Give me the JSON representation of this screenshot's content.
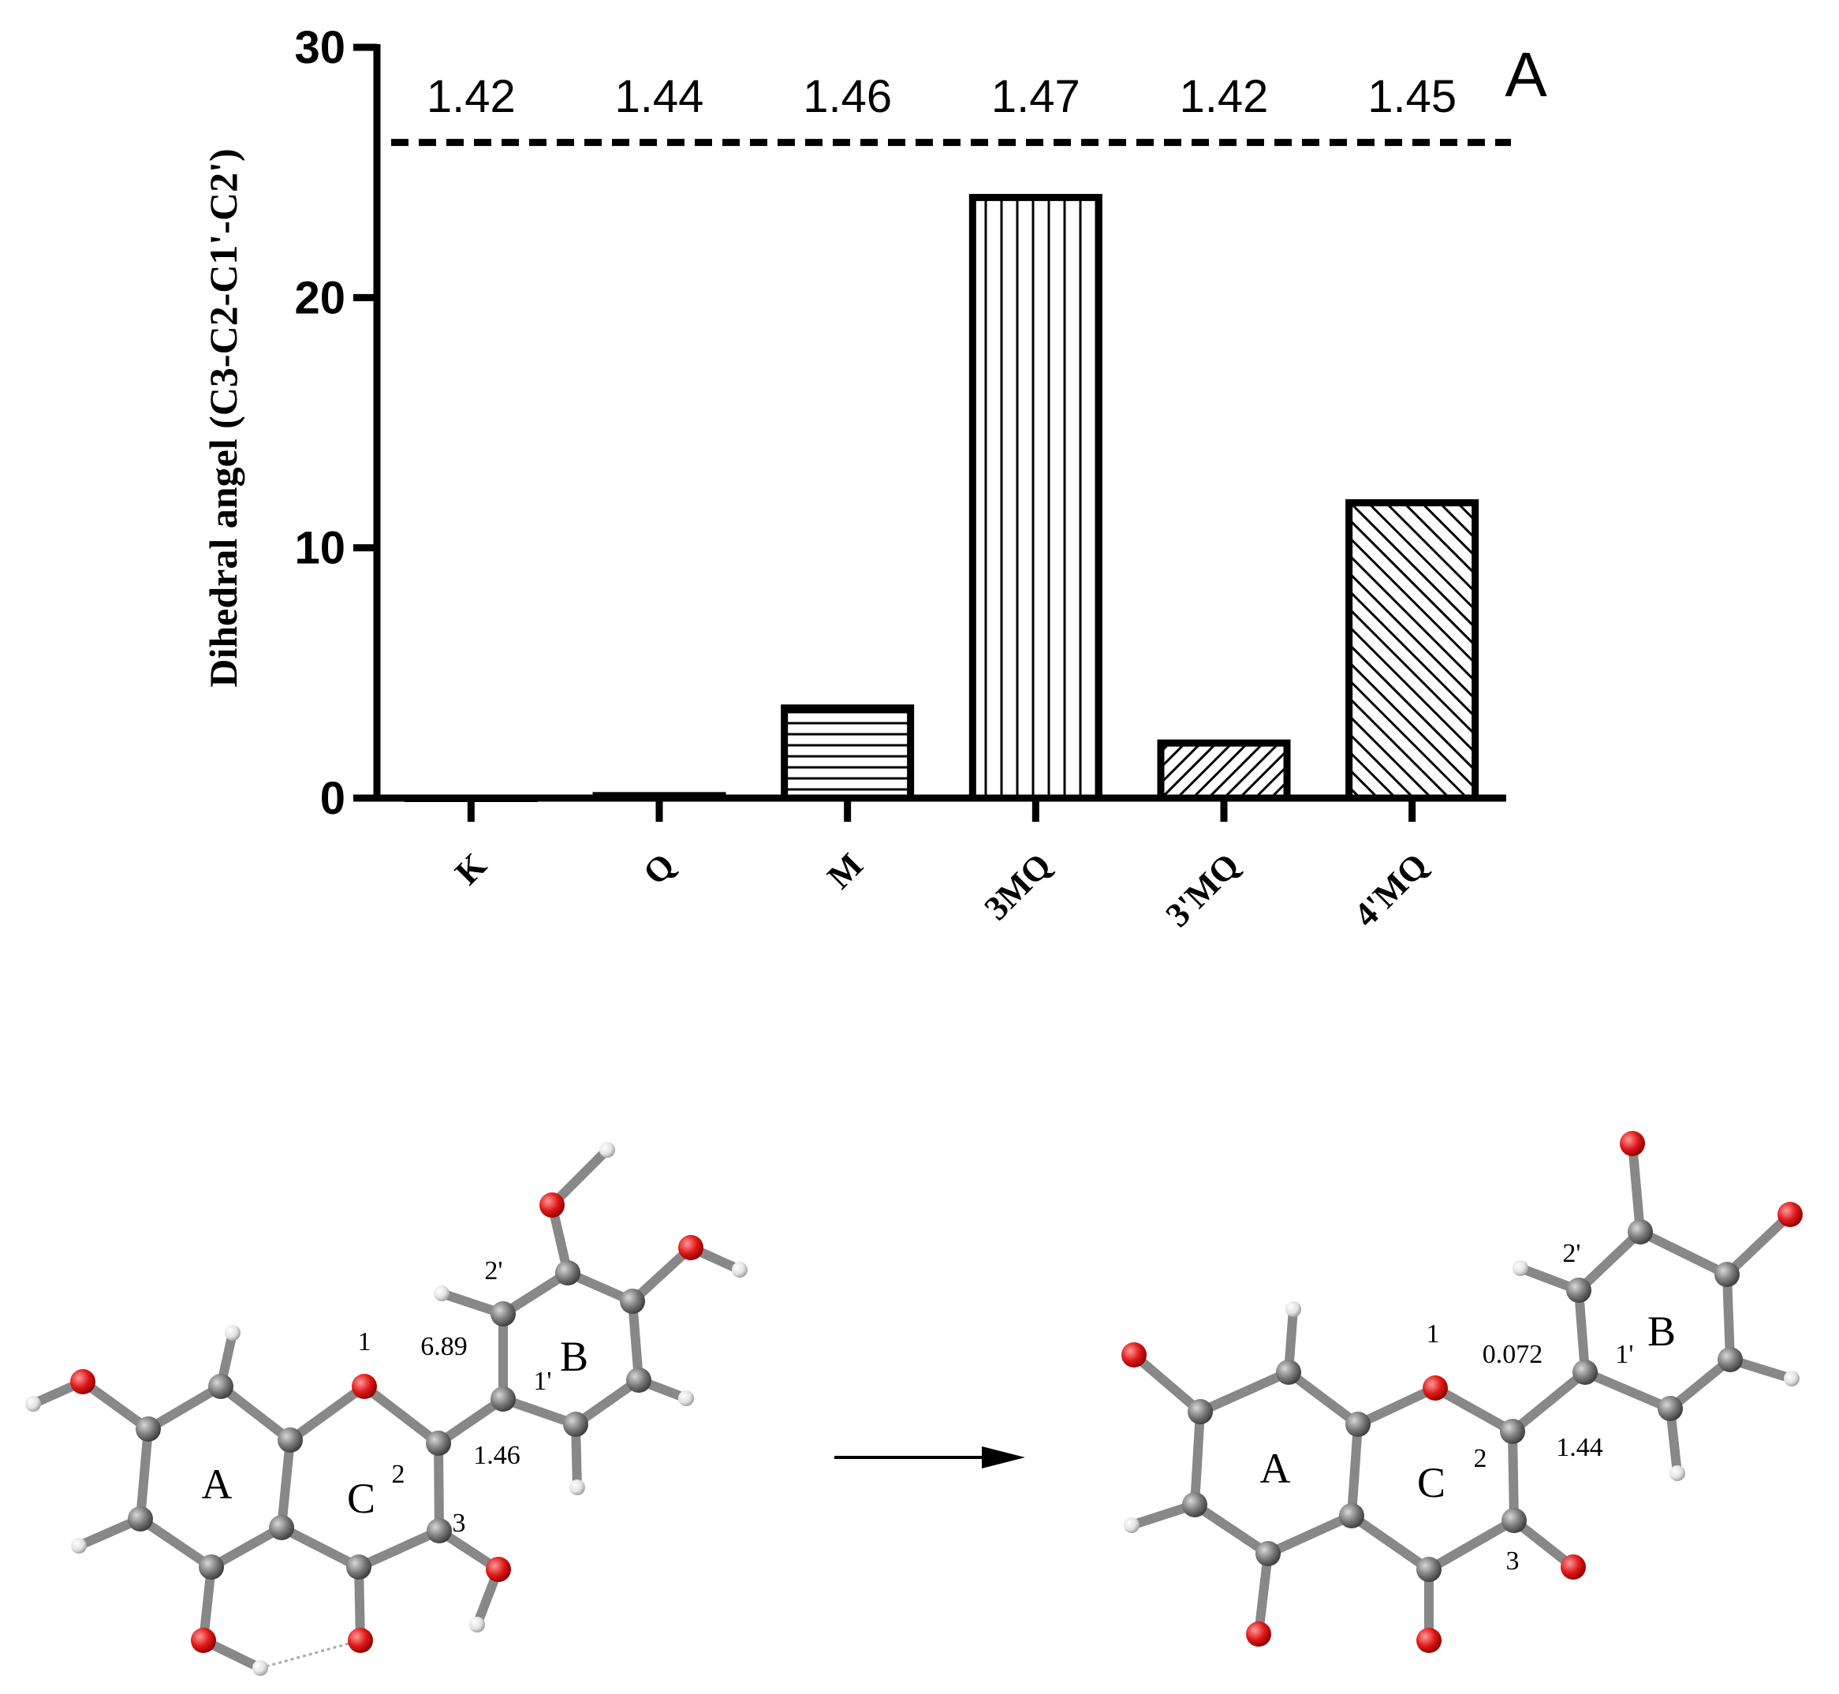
{
  "chart_data": {
    "type": "bar",
    "panel_label": "A",
    "ylabel": "Dihedral angel (C3-C2-C1'-C2')",
    "ylim": [
      0,
      30
    ],
    "yticks": [
      "0",
      "10",
      "20",
      "30"
    ],
    "categories": [
      "K",
      "Q",
      "M",
      "3MQ",
      "3'MQ",
      "4'MQ"
    ],
    "values": [
      0,
      0.1,
      3.6,
      24.0,
      2.2,
      11.8
    ],
    "top_labels": [
      "1.42",
      "1.44",
      "1.46",
      "1.47",
      "1.42",
      "1.45"
    ],
    "reference_line": 26.2,
    "bar_patterns": [
      "none",
      "none",
      "horizontal",
      "vertical",
      "diagonal-fine",
      "diagonal"
    ]
  },
  "diagram": {
    "colors": {
      "carbon": "#7a7a7a",
      "oxygen": "#e01818",
      "hydrogen": "#e2e2e2",
      "bond": "#888888"
    },
    "left_molecule": {
      "ring_labels": [
        "A",
        "C",
        "B"
      ],
      "atom_numbers": [
        "1",
        "2",
        "3",
        "1'",
        "2'"
      ],
      "measurements": [
        "6.89",
        "1.46"
      ]
    },
    "right_molecule": {
      "ring_labels": [
        "A",
        "C",
        "B"
      ],
      "atom_numbers": [
        "1",
        "2",
        "3",
        "1'",
        "2'"
      ],
      "measurements": [
        "0.072",
        "1.44"
      ]
    }
  }
}
